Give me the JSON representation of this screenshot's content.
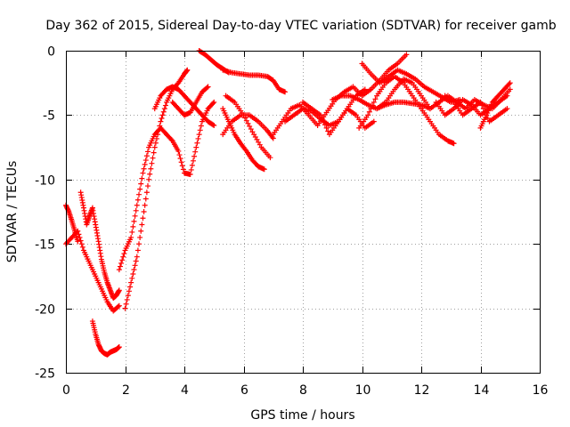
{
  "chart_data": {
    "type": "scatter",
    "title": "Day 362 of 2015, Sidereal Day-to-day VTEC variation (SDTVAR) for receiver gamb",
    "xlabel": "GPS time / hours",
    "ylabel": "SDTVAR / TECUs",
    "xlim": [
      0,
      16
    ],
    "ylim": [
      -25,
      0
    ],
    "xticks": [
      0,
      2,
      4,
      6,
      8,
      10,
      12,
      14,
      16
    ],
    "yticks": [
      0,
      -5,
      -10,
      -15,
      -20,
      -25
    ],
    "xtick_labels": [
      "0",
      "2",
      "4",
      "6",
      "8",
      "10",
      "12",
      "14",
      "16"
    ],
    "ytick_labels": [
      "0",
      "-5",
      "-10",
      "-15",
      "-20",
      "-25"
    ],
    "grid": true,
    "marker": "+",
    "color": "#ff0000",
    "series": [
      {
        "x": [
          0.0,
          0.1,
          0.2,
          0.3,
          0.4
        ],
        "y": [
          -12,
          -12.5,
          -13.2,
          -14.0,
          -14.8
        ]
      },
      {
        "x": [
          0.0,
          0.2,
          0.4,
          0.6,
          0.8,
          1.0,
          1.2,
          1.4,
          1.6,
          1.8
        ],
        "y": [
          -15,
          -14.5,
          -14,
          -15.5,
          -16.5,
          -17.5,
          -18.5,
          -19.5,
          -20.2,
          -19.8
        ]
      },
      {
        "x": [
          0.5,
          0.6,
          0.7,
          0.8,
          0.9,
          1.0,
          1.1,
          1.2,
          1.3,
          1.4,
          1.5,
          1.6,
          1.7,
          1.8
        ],
        "y": [
          -11,
          -12.2,
          -13.5,
          -12.8,
          -12.2,
          -13.5,
          -14.8,
          -16.2,
          -17.2,
          -18.0,
          -18.6,
          -19.2,
          -19.0,
          -18.6
        ]
      },
      {
        "x": [
          0.9,
          1.0,
          1.1,
          1.2,
          1.3,
          1.4,
          1.5,
          1.6,
          1.7,
          1.8
        ],
        "y": [
          -21,
          -22.0,
          -22.8,
          -23.3,
          -23.5,
          -23.6,
          -23.4,
          -23.3,
          -23.2,
          -23.0
        ]
      },
      {
        "x": [
          2.0,
          2.2,
          2.4,
          2.6,
          2.8,
          3.0,
          3.2,
          3.4,
          3.6,
          3.8,
          4.0,
          4.1
        ],
        "y": [
          -20,
          -18,
          -16,
          -13,
          -10,
          -7.5,
          -5.5,
          -4.0,
          -3.0,
          -2.5,
          -1.8,
          -1.5
        ]
      },
      {
        "x": [
          1.8,
          2.0,
          2.2,
          2.4,
          2.6,
          2.8,
          3.0,
          3.2,
          3.4,
          3.6,
          3.8,
          4.0,
          4.2,
          4.4,
          4.6,
          4.8,
          5.0
        ],
        "y": [
          -17,
          -15.5,
          -14.5,
          -12,
          -9.5,
          -7.5,
          -6.5,
          -6.0,
          -6.5,
          -7.0,
          -7.8,
          -9.5,
          -9.6,
          -7.5,
          -5.5,
          -4.5,
          -4.0
        ]
      },
      {
        "x": [
          3.0,
          3.2,
          3.4,
          3.6,
          3.8,
          4.0,
          4.2,
          4.4,
          4.6,
          4.8,
          5.0
        ],
        "y": [
          -4.5,
          -3.5,
          -3.0,
          -2.8,
          -3.0,
          -3.5,
          -4.0,
          -4.5,
          -5.0,
          -5.5,
          -5.8
        ]
      },
      {
        "x": [
          3.6,
          3.8,
          4.0,
          4.2,
          4.4,
          4.6,
          4.8
        ],
        "y": [
          -4.0,
          -4.5,
          -5.0,
          -4.8,
          -4.0,
          -3.2,
          -2.8
        ]
      },
      {
        "x": [
          4.5,
          4.7,
          4.9,
          5.1,
          5.3,
          5.5
        ],
        "y": [
          0,
          -0.3,
          -0.7,
          -1.1,
          -1.4,
          -1.7
        ]
      },
      {
        "x": [
          5.3,
          5.5,
          5.7,
          5.9,
          6.1,
          6.3,
          6.5,
          6.7
        ],
        "y": [
          -4.5,
          -5.5,
          -6.5,
          -7.2,
          -7.8,
          -8.5,
          -9.0,
          -9.2
        ]
      },
      {
        "x": [
          5.3,
          5.6,
          5.9,
          6.2,
          6.5,
          6.8,
          7.0
        ],
        "y": [
          -6.5,
          -5.5,
          -5.0,
          -5.0,
          -5.5,
          -6.2,
          -6.8
        ]
      },
      {
        "x": [
          5.4,
          5.7,
          6.0,
          6.3,
          6.6,
          6.9
        ],
        "y": [
          -3.5,
          -4.0,
          -5.0,
          -6.3,
          -7.5,
          -8.3
        ]
      },
      {
        "x": [
          5.3,
          5.6,
          5.9,
          6.2,
          6.5,
          6.8,
          7.0,
          7.2,
          7.4
        ],
        "y": [
          -1.5,
          -1.7,
          -1.8,
          -1.9,
          -1.9,
          -2.0,
          -2.3,
          -3.0,
          -3.2
        ]
      },
      {
        "x": [
          7.0,
          7.3,
          7.6,
          7.9,
          8.2,
          8.5,
          8.8,
          9.1,
          9.4,
          9.7,
          10.0,
          10.3,
          10.6,
          10.9,
          11.2,
          11.5
        ],
        "y": [
          -6.5,
          -5.5,
          -4.5,
          -4.2,
          -5.0,
          -5.8,
          -4.8,
          -3.8,
          -3.2,
          -2.8,
          -3.5,
          -3.0,
          -2.3,
          -1.5,
          -1.0,
          -0.3
        ]
      },
      {
        "x": [
          7.4,
          7.7,
          8.0,
          8.3,
          8.6,
          8.9,
          9.2,
          9.5,
          9.8,
          10.1
        ],
        "y": [
          -5.5,
          -5.0,
          -4.5,
          -4.7,
          -5.3,
          -5.8,
          -5.5,
          -4.5,
          -3.5,
          -3.0
        ]
      },
      {
        "x": [
          8.0,
          8.3,
          8.6,
          8.9,
          9.2,
          9.5,
          9.8,
          10.1,
          10.4
        ],
        "y": [
          -4.0,
          -4.5,
          -5.0,
          -6.5,
          -5.5,
          -4.5,
          -5.0,
          -6.0,
          -5.5
        ]
      },
      {
        "x": [
          9.0,
          9.3,
          9.6,
          9.9,
          10.2,
          10.5,
          10.8,
          11.1,
          11.4,
          11.7,
          12.0,
          12.3
        ],
        "y": [
          -3.8,
          -3.5,
          -3.5,
          -3.8,
          -4.2,
          -4.5,
          -4.2,
          -4.0,
          -4.0,
          -4.1,
          -4.2,
          -4.5
        ]
      },
      {
        "x": [
          9.9,
          10.2,
          10.5,
          10.8,
          11.1,
          11.4,
          11.7,
          12.0,
          12.3,
          12.6,
          12.9,
          13.1
        ],
        "y": [
          -6.0,
          -5.0,
          -3.5,
          -2.5,
          -2.0,
          -2.5,
          -3.5,
          -4.5,
          -5.5,
          -6.5,
          -7.0,
          -7.2
        ]
      },
      {
        "x": [
          10.0,
          10.3,
          10.6,
          10.9,
          11.2,
          11.5,
          11.8,
          12.1,
          12.4,
          12.7,
          13.0,
          13.3
        ],
        "y": [
          -1.0,
          -1.8,
          -2.5,
          -2.0,
          -1.5,
          -1.8,
          -2.2,
          -2.8,
          -3.2,
          -3.6,
          -4.0,
          -3.8
        ]
      },
      {
        "x": [
          10.5,
          10.8,
          11.1,
          11.4,
          11.7,
          12.0,
          12.3,
          12.6,
          12.9,
          13.2,
          13.5,
          13.8,
          14.1,
          14.4,
          14.7,
          15.0
        ],
        "y": [
          -4.5,
          -4.0,
          -3.0,
          -2.2,
          -2.5,
          -3.5,
          -4.5,
          -4.0,
          -3.5,
          -4.0,
          -4.5,
          -3.8,
          -4.2,
          -4.5,
          -3.8,
          -3.0
        ]
      },
      {
        "x": [
          12.5,
          12.8,
          13.1,
          13.4,
          13.7,
          14.0,
          14.3,
          14.6,
          14.9
        ],
        "y": [
          -4.0,
          -5.0,
          -4.5,
          -3.8,
          -4.2,
          -5.0,
          -4.5,
          -4.0,
          -3.5
        ]
      },
      {
        "x": [
          12.8,
          13.1,
          13.4,
          13.7,
          14.0,
          14.3,
          14.6,
          14.9
        ],
        "y": [
          -3.5,
          -4.0,
          -5.0,
          -4.5,
          -4.0,
          -5.5,
          -5.0,
          -4.5
        ]
      },
      {
        "x": [
          14.0,
          14.2,
          14.4,
          14.6,
          14.8,
          15.0
        ],
        "y": [
          -6.0,
          -5.0,
          -4.0,
          -3.5,
          -3.0,
          -2.5
        ]
      }
    ]
  }
}
